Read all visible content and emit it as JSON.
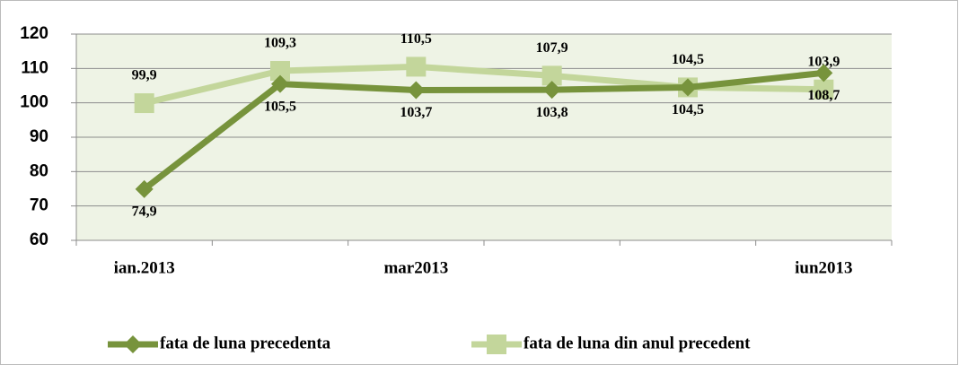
{
  "chart_data": {
    "type": "line",
    "categories": [
      "ian.2013",
      null,
      "mar2013",
      null,
      null,
      "iun2013"
    ],
    "series": [
      {
        "name": "fata de luna precedenta",
        "color": "#77933c",
        "marker": "diamond",
        "values": [
          74.9,
          105.5,
          103.7,
          103.8,
          104.5,
          108.7
        ],
        "value_labels": [
          "74,9",
          "105,5",
          "103,7",
          "103,8",
          "104,5",
          "108,7"
        ]
      },
      {
        "name": "fata de luna din anul precedent",
        "color": "#c3d69b",
        "marker": "square",
        "values": [
          99.9,
          109.3,
          110.5,
          107.9,
          104.5,
          103.9
        ],
        "value_labels": [
          "99,9",
          "109,3",
          "110,5",
          "107,9",
          "104,5",
          "103,9"
        ]
      }
    ],
    "ylim": [
      60,
      120
    ],
    "yticks": [
      60,
      70,
      80,
      90,
      100,
      110,
      120
    ],
    "grid": true,
    "legend": "bottom"
  }
}
